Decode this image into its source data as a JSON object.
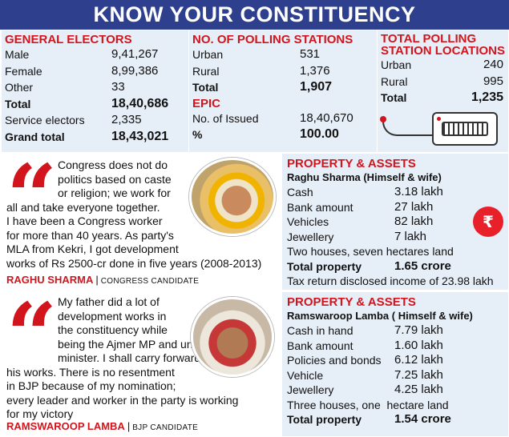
{
  "banner": {
    "title": "KNOW YOUR CONSTITUENCY"
  },
  "general_electors": {
    "heading": "GENERAL ELECTORS",
    "rows": [
      {
        "label": "Male",
        "value": "9,41,267"
      },
      {
        "label": "Female",
        "value": "8,99,386"
      },
      {
        "label": "Other",
        "value": "33"
      },
      {
        "label": "Total",
        "value": "18,40,686"
      },
      {
        "label": "Service electors",
        "value": "2,335"
      },
      {
        "label": "Grand total",
        "value": "18,43,021"
      }
    ]
  },
  "polling_stations": {
    "heading": "NO. OF POLLING STATIONS",
    "rows": [
      {
        "label": "Urban",
        "value": "531"
      },
      {
        "label": "Rural",
        "value": "1,376"
      },
      {
        "label": "Total",
        "value": "1,907"
      }
    ],
    "epic_heading": "EPIC",
    "epic_rows": [
      {
        "label": "No. of Issued",
        "value": "18,40,670"
      },
      {
        "label": "%",
        "value": "100.00"
      }
    ]
  },
  "polling_locations": {
    "heading_line1": "TOTAL POLLING",
    "heading_line2": "STATION LOCATIONS",
    "rows": [
      {
        "label": "Urban",
        "value": "240"
      },
      {
        "label": "Rural",
        "value": "995"
      },
      {
        "label": "Total",
        "value": "1,235"
      }
    ]
  },
  "quote1": {
    "lines": [
      "Congress does not do",
      "politics based on caste",
      "or religion; we work for",
      "all and take everyone together.",
      "I have been a Congress worker",
      "for more than 40 years. As party's",
      "MLA from Kekri, I got development",
      "works of Rs 2500-cr done in five years (2008-2013)"
    ],
    "name": "RAGHU SHARMA",
    "role": "CONGRESS CANDIDATE"
  },
  "property1": {
    "heading": "PROPERTY & ASSETS",
    "subheading": "Raghu Sharma (Himself & wife)",
    "rows": [
      {
        "label": "Cash",
        "value": "3.18 lakh"
      },
      {
        "label": "Bank amount",
        "value": "27 lakh"
      },
      {
        "label": "Vehicles",
        "value": "82 lakh"
      },
      {
        "label": "Jewellery",
        "value": "7 lakh"
      }
    ],
    "houses": "Two houses, seven hectares land",
    "total_label": "Total property",
    "total_value": "1.65 crore",
    "tax_note": "Tax return disclosed income of 23.98 lakh"
  },
  "quote2": {
    "lines": [
      "My father did a lot of",
      "development works in",
      "the constituency while",
      "being the Ajmer MP and union",
      "minister. I shall carry forward",
      "his works. There is no resentment",
      "in BJP because of my nomination;",
      "every leader and worker in the party is working",
      "for my victory"
    ],
    "name": "RAMSWAROOP LAMBA",
    "role": "BJP CANDIDATE"
  },
  "property2": {
    "heading": "PROPERTY & ASSETS",
    "subheading": "Ramswaroop Lamba ( Himself & wife)",
    "rows": [
      {
        "label": "Cash in hand",
        "value": "7.79 lakh"
      },
      {
        "label": "Bank amount",
        "value": "1.60 lakh"
      },
      {
        "label": "Policies and bonds",
        "value": "6.12 lakh"
      },
      {
        "label": "Vehicle",
        "value": "7.25 lakh"
      },
      {
        "label": "Jewellery",
        "value": "4.25 lakh"
      }
    ],
    "houses": "Three houses, one  hectare land",
    "total_label": "Total property",
    "total_value": "1.54 crore"
  },
  "icons": {
    "quote": "quote-mark-icon",
    "evm": "voting-machine-icon",
    "cash": "cash-icon"
  },
  "colors": {
    "banner": "#2e3f8e",
    "heading_red": "#d2141c",
    "panel": "#e6eef8"
  }
}
